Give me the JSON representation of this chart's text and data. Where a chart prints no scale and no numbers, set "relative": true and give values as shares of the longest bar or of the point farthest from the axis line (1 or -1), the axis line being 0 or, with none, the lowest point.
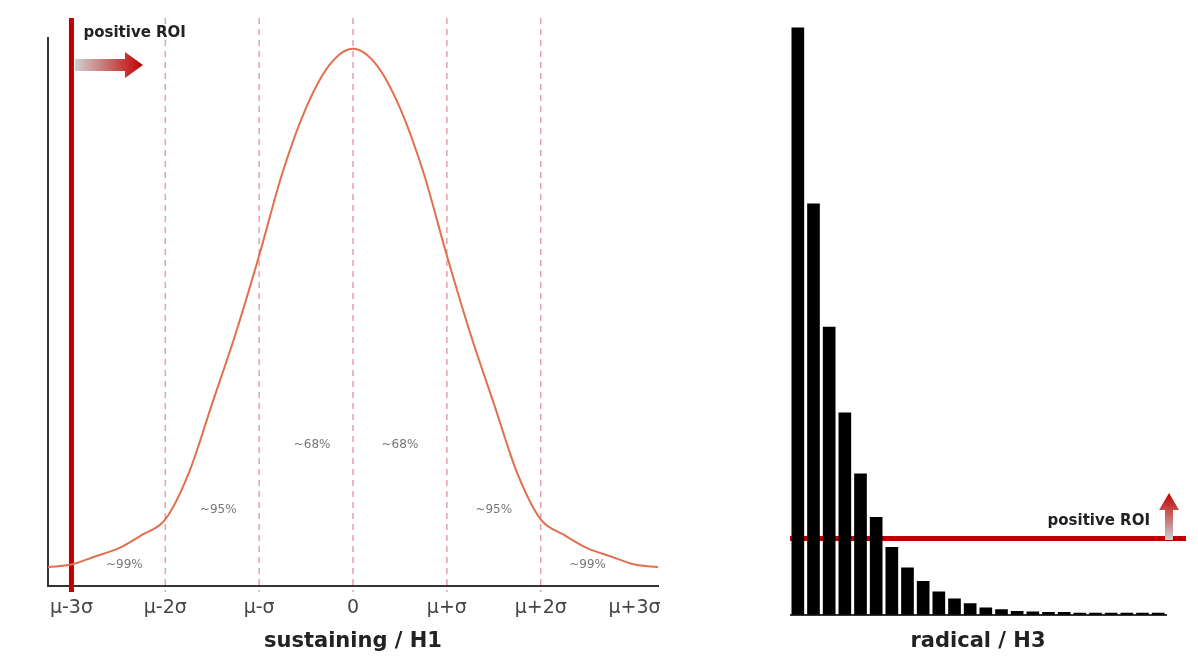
{
  "chart_data": [
    {
      "type": "line",
      "relative": true,
      "xlabel": "sustaining / H1",
      "legend": false,
      "grid": false,
      "tick_labels": "x",
      "marker": "none",
      "categories": [
        null,
        "μ-3σ",
        null,
        null,
        null,
        "μ-2σ",
        null,
        null,
        null,
        "μ-σ",
        null,
        null,
        null,
        "0",
        null,
        null,
        null,
        "μ+σ",
        null,
        null,
        null,
        "μ+2σ",
        null,
        null,
        null,
        "μ+3σ",
        null
      ],
      "series": [
        {
          "color": "#e07050",
          "values": [
            0.035,
            0.04,
            0.055,
            0.07,
            0.095,
            0.124,
            0.21,
            0.34,
            0.47,
            0.615,
            0.77,
            0.89,
            0.97,
            1,
            0.97,
            0.89,
            0.77,
            0.615,
            0.47,
            0.34,
            0.21,
            0.124,
            0.095,
            0.07,
            0.055,
            0.04,
            0.035
          ]
        }
      ],
      "ref_lines": [
        {
          "axis": "x",
          "value": "μ-2σ",
          "color": "#e8a0a8",
          "line_style": "dashed"
        },
        {
          "axis": "x",
          "value": "μ-σ",
          "color": "#e8a0a8",
          "line_style": "dashed"
        },
        {
          "axis": "x",
          "value": "0",
          "color": "#e8a0a8",
          "line_style": "dashed"
        },
        {
          "axis": "x",
          "value": "μ+σ",
          "color": "#e8a0a8",
          "line_style": "dashed"
        },
        {
          "axis": "x",
          "value": "μ+2σ",
          "color": "#e8a0a8",
          "line_style": "dashed"
        },
        {
          "axis": "x",
          "value": "μ-3σ",
          "label": "positive ROI",
          "color": "#c00000",
          "line_style": "solid"
        }
      ],
      "annotations": [
        "~99%",
        "~95%",
        "~68%",
        "~68%",
        "~95%",
        "~99%"
      ]
    },
    {
      "type": "bar",
      "relative": true,
      "xlabel": "radical / H3",
      "legend": false,
      "grid": false,
      "tick_labels": false,
      "categories": [
        null,
        null,
        null,
        null,
        null,
        null,
        null,
        null,
        null,
        null,
        null,
        null,
        null,
        null,
        null,
        null,
        null,
        null,
        null,
        null,
        null,
        null,
        null,
        null
      ],
      "series": [
        {
          "color": "#000000",
          "values": [
            1,
            0.7,
            0.49,
            0.344,
            0.24,
            0.166,
            0.115,
            0.08,
            0.057,
            0.039,
            0.027,
            0.019,
            0.012,
            0.009,
            0.006,
            0.005,
            0.004,
            0.004,
            0.003,
            0.003,
            0.003,
            0.003,
            0.003,
            0.003
          ]
        }
      ],
      "ref_lines": [
        {
          "axis": "y",
          "value": 0.13,
          "label": "positive ROI",
          "color": "#c00000",
          "line_style": "solid"
        }
      ]
    }
  ]
}
